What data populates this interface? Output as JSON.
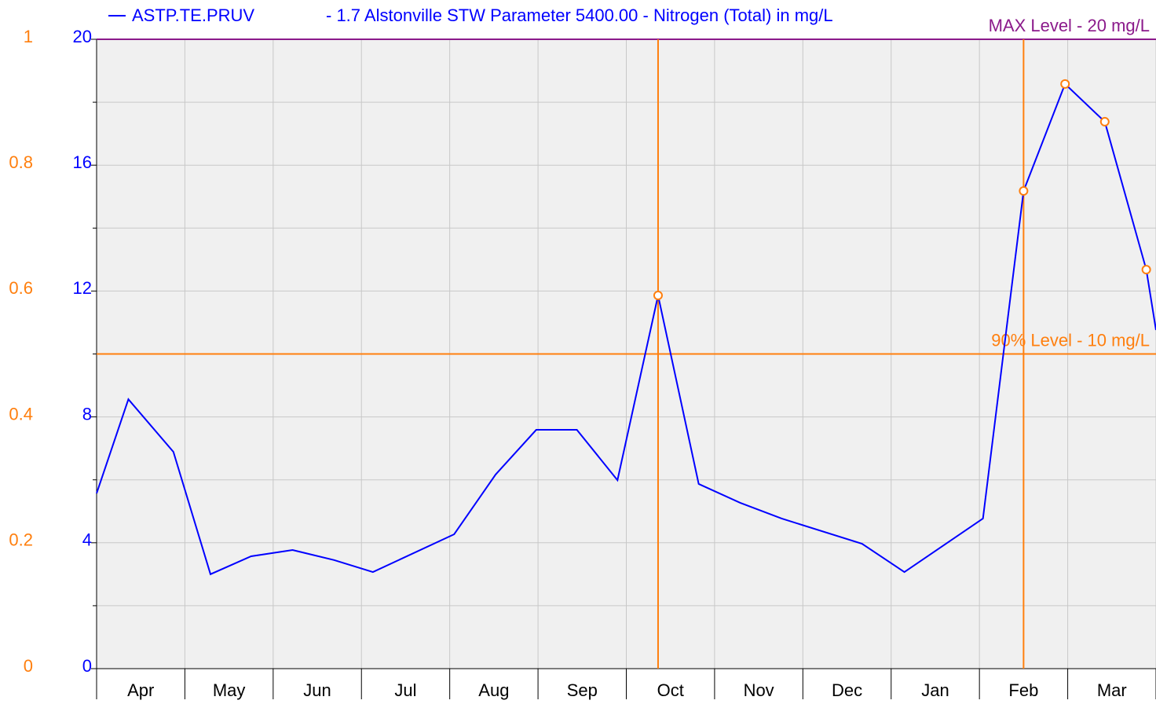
{
  "chart_data": {
    "type": "line",
    "title": "- 1.7 Alstonville STW Parameter 5400.00 - Nitrogen (Total) in mg/L",
    "categories": [
      "Apr",
      "May",
      "Jun",
      "Jul",
      "Aug",
      "Sep",
      "Oct",
      "Nov",
      "Dec",
      "Jan",
      "Feb",
      "Mar"
    ],
    "month_boundaries": [
      0,
      1,
      2,
      3,
      4,
      5,
      6,
      7,
      8,
      9,
      10,
      11,
      12
    ],
    "xlim": [
      0,
      12
    ],
    "series": [
      {
        "name": "ASTP.TE.PRUV",
        "color": "#0000ff",
        "x": [
          0,
          0.36,
          0.87,
          1.29,
          1.75,
          2.22,
          2.69,
          3.13,
          4.05,
          4.52,
          4.98,
          5.44,
          5.9,
          6.36,
          6.82,
          7.29,
          7.76,
          8.67,
          9.15,
          10.04,
          10.5,
          10.97,
          11.42,
          11.89,
          12.0
        ],
        "values": [
          5.57,
          8.56,
          6.89,
          3.0,
          3.57,
          3.77,
          3.45,
          3.07,
          4.27,
          6.17,
          7.59,
          7.59,
          5.99,
          11.86,
          5.87,
          5.27,
          4.77,
          3.97,
          3.07,
          4.77,
          15.18,
          18.58,
          17.38,
          12.68,
          10.76
        ]
      }
    ],
    "ylim": [
      0,
      20
    ],
    "yticks": [
      0,
      4,
      8,
      12,
      16,
      20
    ],
    "minor_yticks": [
      2,
      6,
      10,
      14,
      18
    ],
    "y2lim": [
      0,
      1
    ],
    "y2ticks": [
      0,
      0.2,
      0.4,
      0.6,
      0.8,
      1
    ],
    "grid": true,
    "reference_lines": [
      {
        "label": "MAX Level - 20 mg/L",
        "value": 20,
        "color": "#8b1a8b"
      },
      {
        "label": "90% Level - 10 mg/L",
        "value": 10,
        "color": "#ff7f0e"
      }
    ],
    "exceedance_marker_color": "#ff7f0e",
    "vertical_lines": [
      6.36,
      10.5
    ]
  }
}
